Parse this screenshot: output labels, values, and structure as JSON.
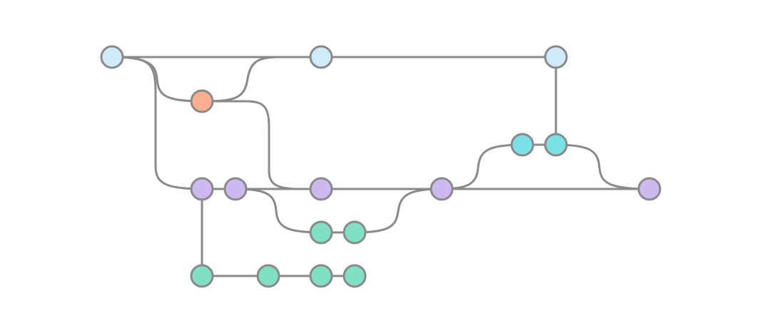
{
  "diagram": {
    "type": "commit-graph",
    "colors": {
      "edge": "#8a8a8a",
      "light-blue": "#cfeaf8",
      "salmon": "#fcae91",
      "lavender": "#cdb9f0",
      "mint": "#7fe0c3",
      "cyan": "#7ae2e6"
    },
    "nodes": [
      {
        "id": "n1",
        "color": "light-blue"
      },
      {
        "id": "n2",
        "color": "salmon"
      },
      {
        "id": "n3",
        "color": "light-blue"
      },
      {
        "id": "n4",
        "color": "light-blue"
      },
      {
        "id": "n5",
        "color": "lavender"
      },
      {
        "id": "n6",
        "color": "lavender"
      },
      {
        "id": "n7",
        "color": "lavender"
      },
      {
        "id": "n8",
        "color": "lavender"
      },
      {
        "id": "n9",
        "color": "lavender"
      },
      {
        "id": "n10",
        "color": "cyan"
      },
      {
        "id": "n11",
        "color": "cyan"
      },
      {
        "id": "n12",
        "color": "mint"
      },
      {
        "id": "n13",
        "color": "mint"
      },
      {
        "id": "n14",
        "color": "mint"
      },
      {
        "id": "n15",
        "color": "mint"
      },
      {
        "id": "n16",
        "color": "mint"
      },
      {
        "id": "n17",
        "color": "mint"
      }
    ],
    "edges": [
      {
        "from": "n1",
        "to": "n3"
      },
      {
        "from": "n3",
        "to": "n4"
      },
      {
        "from": "n1",
        "to": "n2"
      },
      {
        "from": "n2",
        "to": "n3"
      },
      {
        "from": "n1",
        "to": "n5"
      },
      {
        "from": "n5",
        "to": "n6"
      },
      {
        "from": "n6",
        "to": "n7"
      },
      {
        "from": "n2",
        "to": "n7"
      },
      {
        "from": "n7",
        "to": "n8"
      },
      {
        "from": "n8",
        "to": "n9"
      },
      {
        "from": "n8",
        "to": "n10"
      },
      {
        "from": "n10",
        "to": "n11"
      },
      {
        "from": "n4",
        "to": "n11"
      },
      {
        "from": "n11",
        "to": "n9"
      },
      {
        "from": "n6",
        "to": "n12"
      },
      {
        "from": "n12",
        "to": "n13"
      },
      {
        "from": "n13",
        "to": "n8"
      },
      {
        "from": "n5",
        "to": "n14"
      },
      {
        "from": "n14",
        "to": "n15"
      },
      {
        "from": "n15",
        "to": "n16"
      },
      {
        "from": "n16",
        "to": "n17"
      }
    ]
  }
}
